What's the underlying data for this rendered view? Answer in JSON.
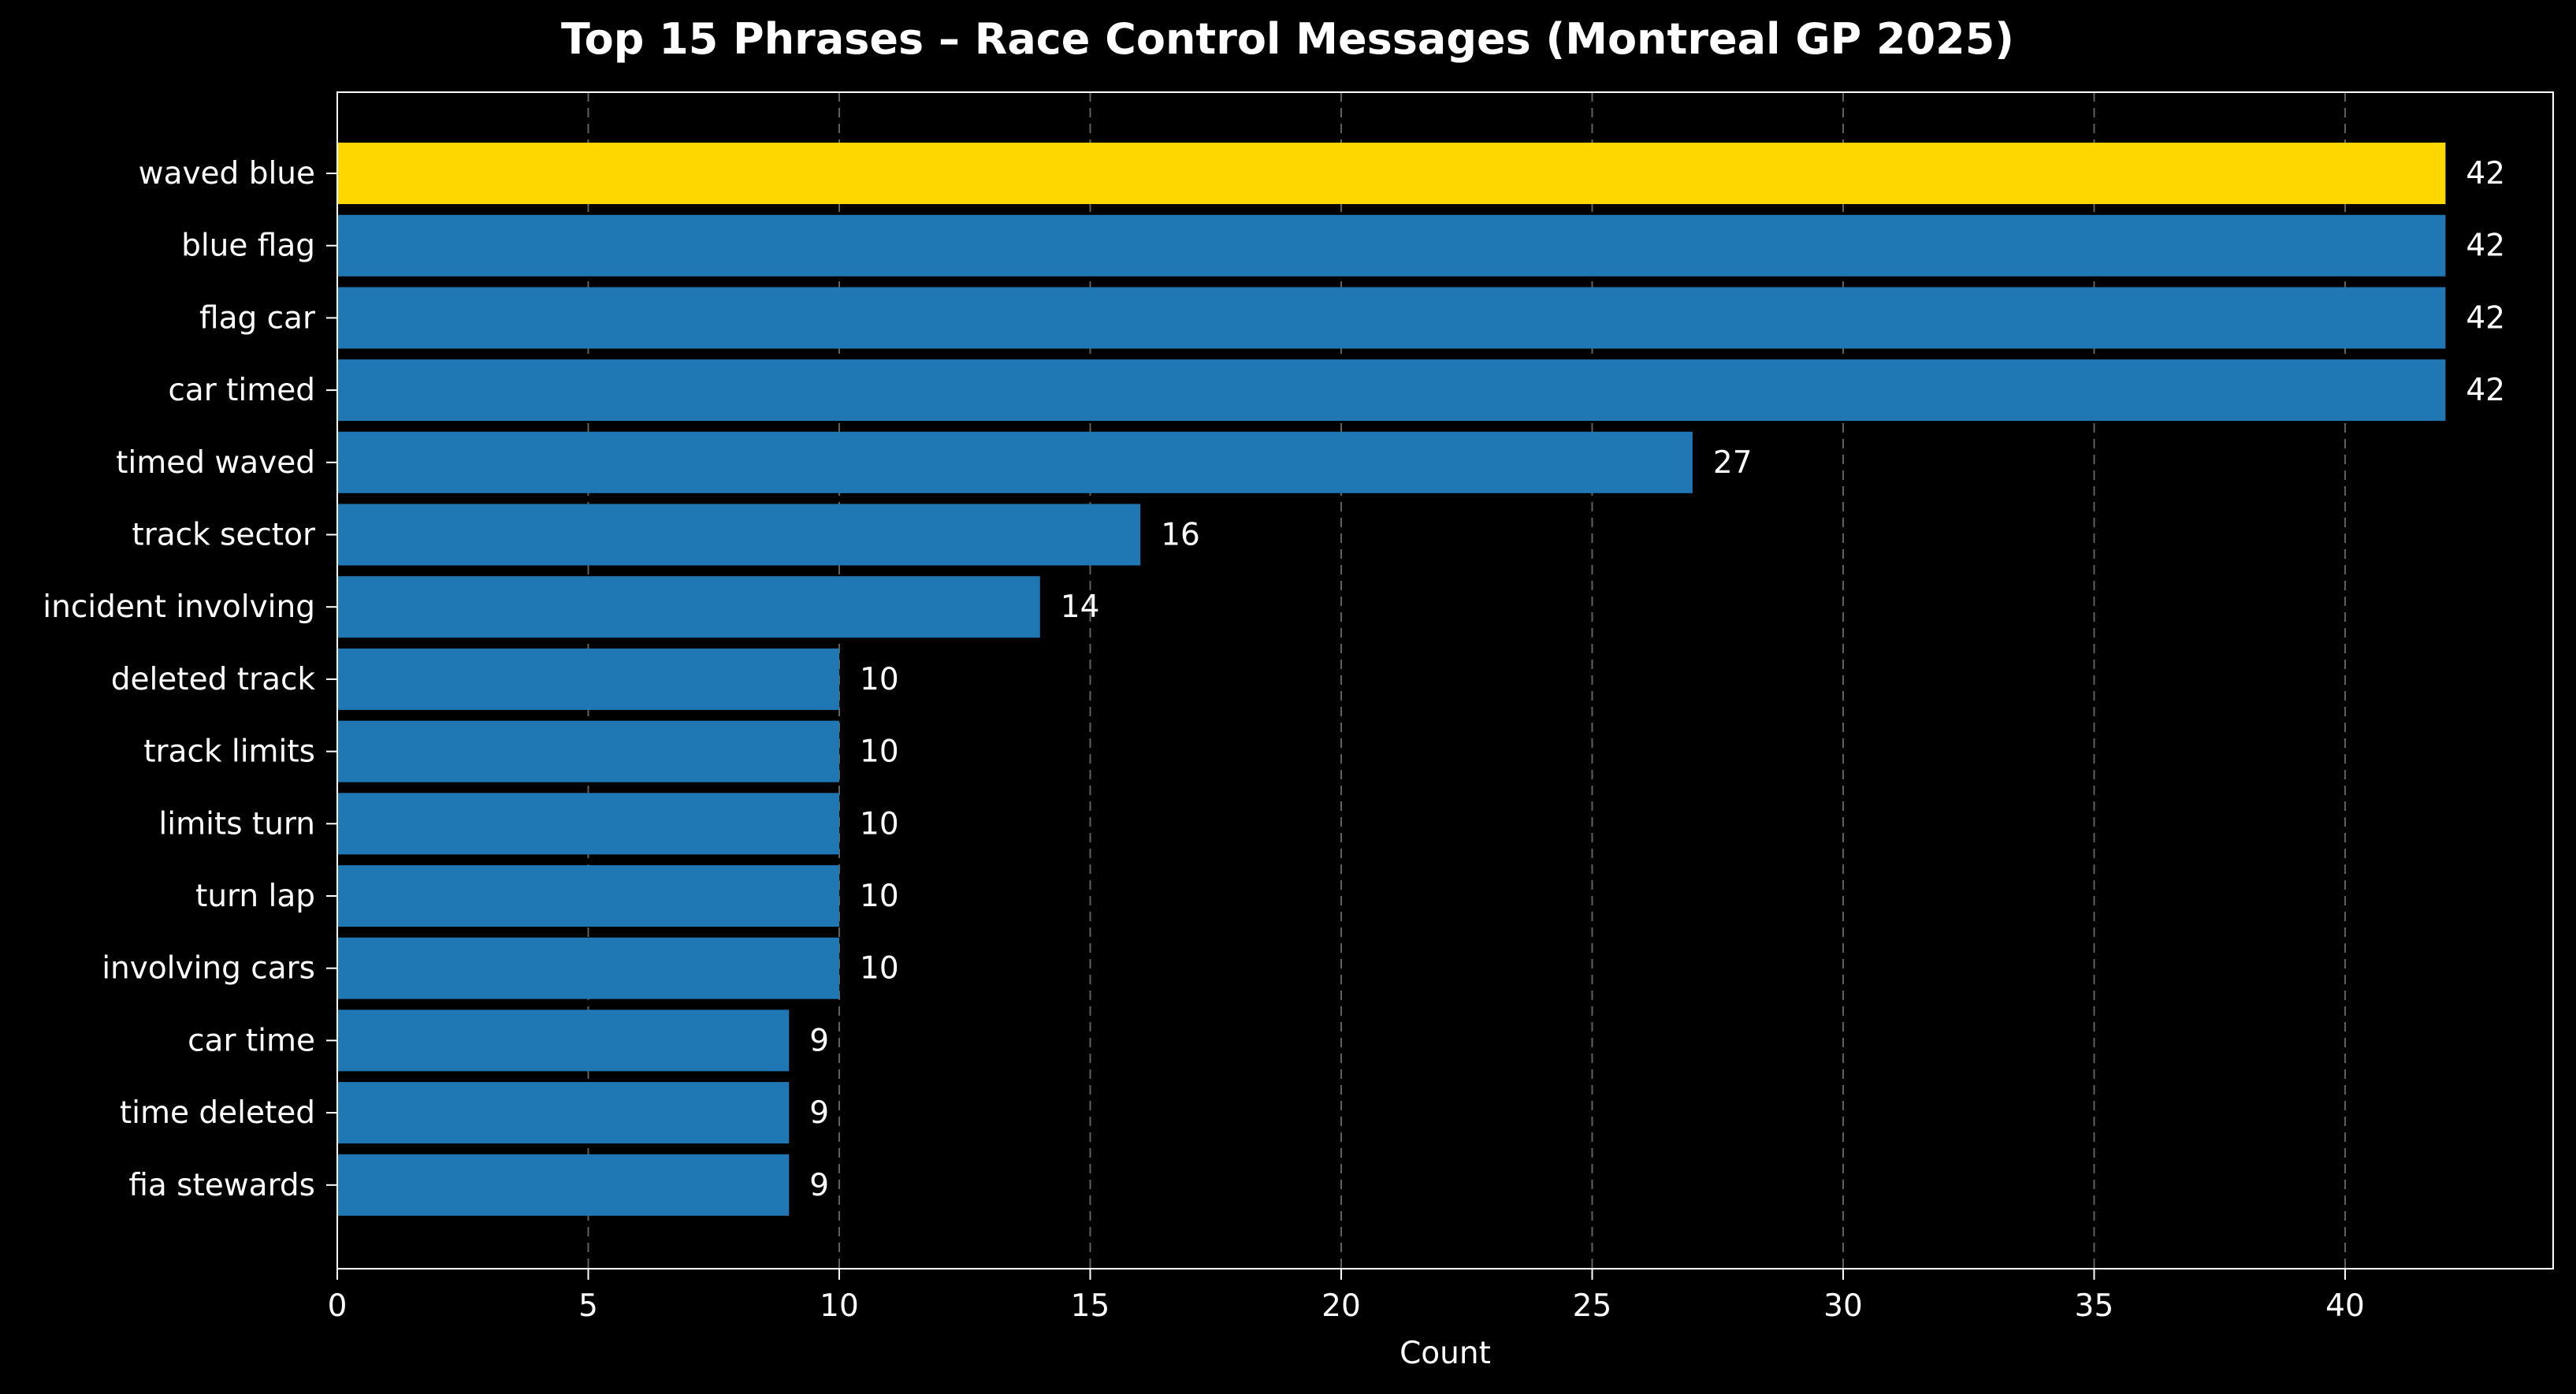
{
  "chart_data": {
    "type": "bar",
    "orientation": "horizontal",
    "title": "Top 15 Phrases – Race Control Messages (Montreal GP 2025)",
    "xlabel": "Count",
    "ylabel": "",
    "xlim": [
      0,
      44
    ],
    "xticks": [
      0,
      5,
      10,
      15,
      20,
      25,
      30,
      35,
      40
    ],
    "grid": "x-dashed",
    "categories": [
      "waved blue",
      "blue flag",
      "flag car",
      "car timed",
      "timed waved",
      "track sector",
      "incident involving",
      "deleted track",
      "track limits",
      "limits turn",
      "turn lap",
      "involving cars",
      "car time",
      "time deleted",
      "fia stewards"
    ],
    "values": [
      42,
      42,
      42,
      42,
      27,
      16,
      14,
      10,
      10,
      10,
      10,
      10,
      9,
      9,
      9
    ],
    "highlight_index": 0,
    "colors": {
      "highlight": "#FFD700",
      "bar": "#1F77B4",
      "background": "#000000",
      "text": "#FFFFFF",
      "grid": "#808080"
    }
  }
}
